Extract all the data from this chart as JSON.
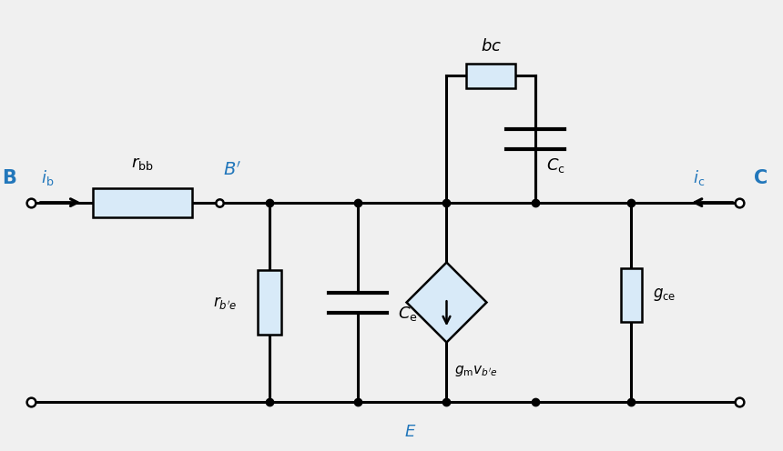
{
  "bg_color": "#f0f0f0",
  "line_color": "#000000",
  "blue_color": "#2277bb",
  "component_fill": "#d8eaf8",
  "fig_width": 8.6,
  "fig_height": 4.96,
  "dpi": 100,
  "xlim": [
    0,
    10
  ],
  "ylim": [
    0,
    5.8
  ],
  "top_y": 3.2,
  "bot_y": 0.6,
  "x_B": 0.3,
  "x_rbb_l": 1.1,
  "x_rbb_r": 2.4,
  "x_Bprime": 2.75,
  "x_n1": 3.4,
  "x_n2": 4.55,
  "x_n3": 5.7,
  "x_n4": 6.85,
  "x_n5": 8.1,
  "x_C": 9.5,
  "top_loop_y": 4.85,
  "lw": 2.2,
  "lw_comp": 1.8
}
